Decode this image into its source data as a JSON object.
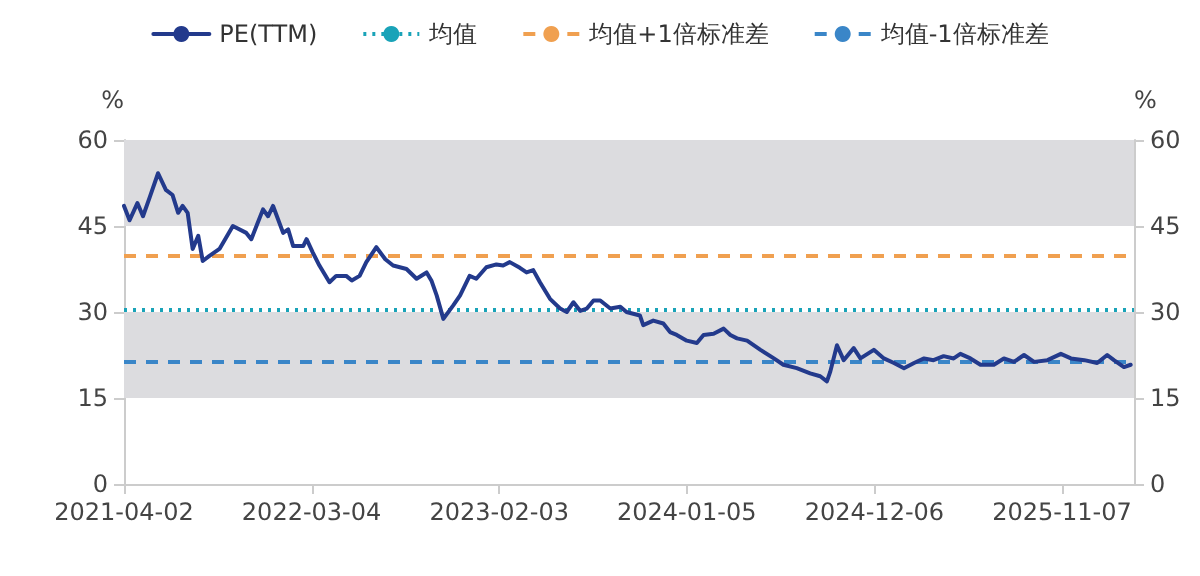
{
  "chart_data": {
    "type": "line",
    "ylabel": "%",
    "y2label": "%",
    "x": [
      "2021-04-02",
      "2021-04-12",
      "2021-04-26",
      "2021-05-06",
      "2021-05-18",
      "2021-06-02",
      "2021-06-16",
      "2021-06-28",
      "2021-07-08",
      "2021-07-16",
      "2021-07-25",
      "2021-08-03",
      "2021-08-13",
      "2021-08-21",
      "2021-09-02",
      "2021-09-20",
      "2021-10-14",
      "2021-11-07",
      "2021-11-16",
      "2021-12-07",
      "2021-12-16",
      "2021-12-25",
      "2022-01-12",
      "2022-01-21",
      "2022-01-30",
      "2022-02-17",
      "2022-02-23",
      "2022-03-06",
      "2022-03-18",
      "2022-04-05",
      "2022-04-17",
      "2022-05-05",
      "2022-05-15",
      "2022-05-29",
      "2022-06-10",
      "2022-06-28",
      "2022-07-14",
      "2022-07-28",
      "2022-08-21",
      "2022-09-08",
      "2022-09-26",
      "2022-10-05",
      "2022-10-14",
      "2022-10-26",
      "2022-11-13",
      "2022-11-25",
      "2022-12-12",
      "2022-12-24",
      "2023-01-11",
      "2023-01-29",
      "2023-02-10",
      "2023-02-22",
      "2023-03-12",
      "2023-03-24",
      "2023-04-05",
      "2023-04-17",
      "2023-05-05",
      "2023-05-23",
      "2023-06-04",
      "2023-06-16",
      "2023-06-28",
      "2023-07-10",
      "2023-07-22",
      "2023-08-03",
      "2023-08-21",
      "2023-09-08",
      "2023-09-19",
      "2023-10-13",
      "2023-10-19",
      "2023-11-06",
      "2023-11-24",
      "2023-12-06",
      "2023-12-18",
      "2024-01-05",
      "2024-01-23",
      "2024-02-04",
      "2024-02-22",
      "2024-03-11",
      "2024-03-23",
      "2024-04-04",
      "2024-04-22",
      "2024-05-16",
      "2024-06-09",
      "2024-06-26",
      "2024-07-20",
      "2024-08-13",
      "2024-08-31",
      "2024-09-12",
      "2024-09-18",
      "2024-09-30",
      "2024-10-12",
      "2024-10-30",
      "2024-11-11",
      "2024-12-05",
      "2024-12-23",
      "2025-01-10",
      "2025-01-28",
      "2025-02-15",
      "2025-03-05",
      "2025-03-22",
      "2025-04-09",
      "2025-04-27",
      "2025-05-09",
      "2025-05-27",
      "2025-06-14",
      "2025-07-08",
      "2025-07-26",
      "2025-08-13",
      "2025-08-31",
      "2025-09-18",
      "2025-10-12",
      "2025-11-05",
      "2025-11-23",
      "2025-12-17",
      "2026-01-09",
      "2026-01-27",
      "2026-02-08",
      "2026-02-26",
      "2026-03-10"
    ],
    "series": [
      {
        "name": "PE(TTM)",
        "color": "#233a8c",
        "values": [
          48.5,
          46,
          49,
          46.7,
          50,
          54.2,
          51.3,
          50.4,
          47.3,
          48.5,
          47.3,
          41,
          43.3,
          38.9,
          39.8,
          41,
          45,
          43.8,
          42.7,
          47.9,
          46.7,
          48.5,
          43.8,
          44.4,
          41.5,
          41.5,
          42.7,
          40.4,
          38.1,
          35.2,
          36.3,
          36.3,
          35.5,
          36.3,
          38.7,
          41.3,
          39.2,
          38.1,
          37.5,
          35.8,
          36.9,
          35.4,
          32.9,
          28.8,
          31.2,
          32.9,
          36.3,
          35.8,
          37.8,
          38.3,
          38.1,
          38.7,
          37.7,
          36.9,
          37.3,
          35.2,
          32.3,
          30.6,
          30,
          31.7,
          30.2,
          30.6,
          32,
          32,
          30.6,
          30.9,
          30,
          29.4,
          27.7,
          28.5,
          28,
          26.5,
          26,
          25,
          24.6,
          26,
          26.2,
          27.1,
          26,
          25.4,
          25,
          23.4,
          21.9,
          20.8,
          20.2,
          19.3,
          18.8,
          17.9,
          19.6,
          24.2,
          21.6,
          23.7,
          21.9,
          23.4,
          21.9,
          21.1,
          20.2,
          21.1,
          21.9,
          21.6,
          22.3,
          21.9,
          22.7,
          21.9,
          20.8,
          20.8,
          21.9,
          21.3,
          22.5,
          21.3,
          21.6,
          22.7,
          21.9,
          21.6,
          21.1,
          22.5,
          21.6,
          20.4,
          20.8
        ]
      }
    ],
    "ref_lines": [
      {
        "axis": "y",
        "value": 30.6,
        "label": "均值",
        "color": "#1aa3b8",
        "line_style": "dotted"
      },
      {
        "axis": "y",
        "value": 39.8,
        "label": "均值+1倍标准差",
        "color": "#f0a050",
        "line_style": "dashed"
      },
      {
        "axis": "y",
        "value": 21.3,
        "label": "均值-1倍标准差",
        "color": "#3a86c8",
        "line_style": "dashed"
      }
    ],
    "bands": [
      {
        "axis": "y",
        "from": 45,
        "to": 60,
        "color": "#dcdcdf"
      },
      {
        "axis": "y",
        "from": 15,
        "to": 30,
        "color": "#dcdcdf"
      }
    ],
    "xlim": [
      "2021-04-02",
      "2026-03-16"
    ],
    "xticks": [
      "2021-04-02",
      "2022-03-04",
      "2023-02-03",
      "2024-01-05",
      "2024-12-06",
      "2025-11-07"
    ],
    "ylim": [
      0,
      60
    ],
    "yticks": [
      0,
      15,
      30,
      45,
      60
    ],
    "y2lim": [
      0,
      60
    ],
    "y2ticks": [
      0,
      15,
      30,
      45,
      60
    ],
    "grid": false,
    "legend": "top",
    "marker": "none",
    "line_style": "solid"
  }
}
